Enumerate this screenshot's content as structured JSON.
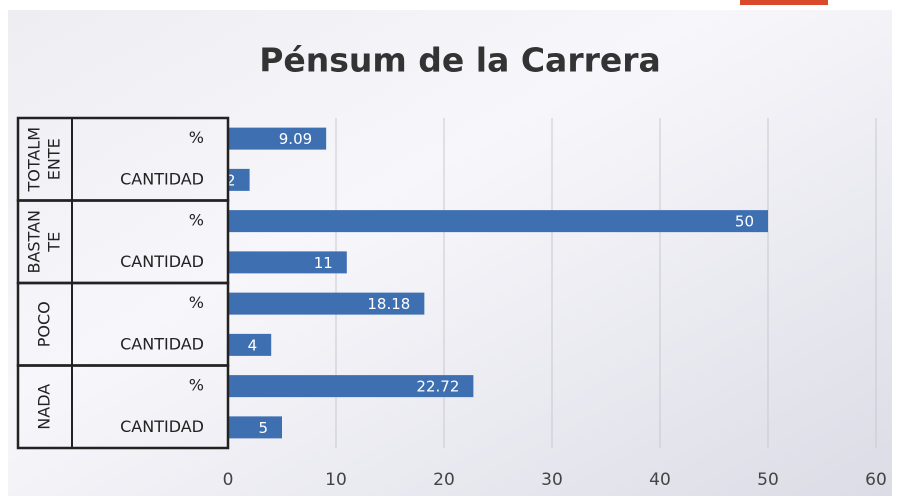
{
  "chart_data": {
    "type": "grouped-hbar",
    "title": "Pénsum de la Carrera",
    "groups": [
      {
        "name_lines": [
          "TOTALM",
          "ENTE"
        ],
        "categories": [
          "%",
          "CANTIDAD"
        ],
        "values": [
          9.09,
          2
        ]
      },
      {
        "name_lines": [
          "BASTAN",
          "TE"
        ],
        "categories": [
          "%",
          "CANTIDAD"
        ],
        "values": [
          50,
          11
        ]
      },
      {
        "name_lines": [
          "POCO"
        ],
        "categories": [
          "%",
          "CANTIDAD"
        ],
        "values": [
          18.18,
          4
        ]
      },
      {
        "name_lines": [
          "NADA"
        ],
        "categories": [
          "%",
          "CANTIDAD"
        ],
        "values": [
          22.72,
          5
        ]
      }
    ],
    "color": "#3e6fb1",
    "xlim": [
      0,
      60
    ],
    "xticks": [
      0,
      10,
      20,
      30,
      40,
      50,
      60
    ],
    "grid": true
  }
}
